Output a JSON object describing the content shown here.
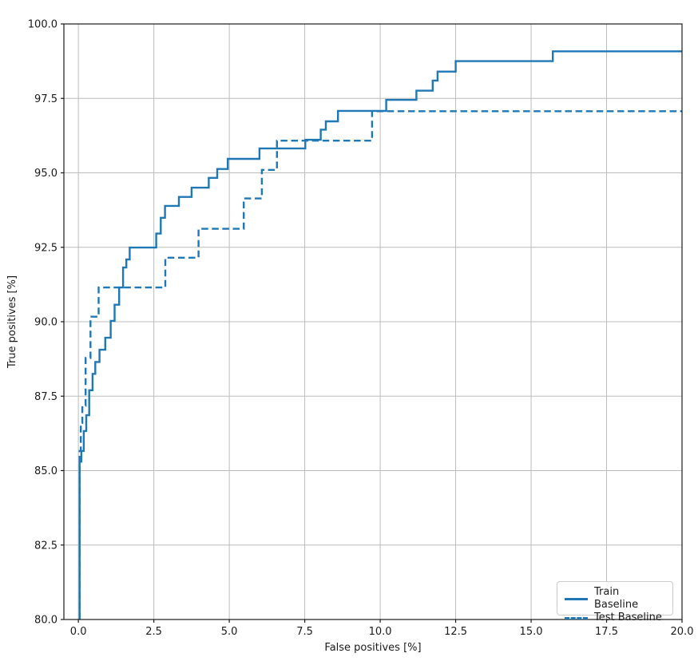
{
  "figure": {
    "background": "#ffffff",
    "accent_color": "#1f77b4",
    "grid_color": "#bcbcbc",
    "spine_color": "#1a1a1a",
    "tick_color": "#1a1a1a"
  },
  "chart_data": {
    "type": "line",
    "subtype": "step-roc-curve",
    "title": "",
    "xlabel": "False positives [%]",
    "ylabel": "True positives [%]",
    "xlim": [
      -0.48,
      20.0
    ],
    "ylim": [
      80.0,
      100.0
    ],
    "grid": true,
    "legend_position": "lower right",
    "x_ticks": {
      "values": [
        0.0,
        2.5,
        5.0,
        7.5,
        10.0,
        12.5,
        15.0,
        17.5,
        20.0
      ],
      "labels": [
        "0.0",
        "2.5",
        "5.0",
        "7.5",
        "10.0",
        "12.5",
        "15.0",
        "17.5",
        "20.0"
      ]
    },
    "y_ticks": {
      "values": [
        80.0,
        82.5,
        85.0,
        87.5,
        90.0,
        92.5,
        95.0,
        97.5,
        100.0
      ],
      "labels": [
        "80.0",
        "82.5",
        "85.0",
        "87.5",
        "90.0",
        "92.5",
        "95.0",
        "97.5",
        "100.0"
      ]
    },
    "series": [
      {
        "name": "Train Baseline",
        "line_style": "solid",
        "color": "#1f77b4",
        "points": [
          [
            0.04,
            80.0
          ],
          [
            0.04,
            85.3
          ],
          [
            0.1,
            85.3
          ],
          [
            0.1,
            85.66
          ],
          [
            0.18,
            85.66
          ],
          [
            0.18,
            86.33
          ],
          [
            0.26,
            86.33
          ],
          [
            0.26,
            86.86
          ],
          [
            0.36,
            86.86
          ],
          [
            0.36,
            87.7
          ],
          [
            0.47,
            87.7
          ],
          [
            0.47,
            88.25
          ],
          [
            0.56,
            88.25
          ],
          [
            0.56,
            88.65
          ],
          [
            0.7,
            88.65
          ],
          [
            0.7,
            89.06
          ],
          [
            0.89,
            89.06
          ],
          [
            0.89,
            89.46
          ],
          [
            1.07,
            89.46
          ],
          [
            1.07,
            90.03
          ],
          [
            1.2,
            90.03
          ],
          [
            1.2,
            90.57
          ],
          [
            1.35,
            90.57
          ],
          [
            1.35,
            91.15
          ],
          [
            1.48,
            91.15
          ],
          [
            1.48,
            91.82
          ],
          [
            1.59,
            91.82
          ],
          [
            1.59,
            92.09
          ],
          [
            1.7,
            92.09
          ],
          [
            1.7,
            92.49
          ],
          [
            2.58,
            92.49
          ],
          [
            2.58,
            92.96
          ],
          [
            2.73,
            92.96
          ],
          [
            2.73,
            93.49
          ],
          [
            2.87,
            93.49
          ],
          [
            2.87,
            93.89
          ],
          [
            3.33,
            93.89
          ],
          [
            3.33,
            94.19
          ],
          [
            3.75,
            94.19
          ],
          [
            3.75,
            94.5
          ],
          [
            4.32,
            94.5
          ],
          [
            4.32,
            94.83
          ],
          [
            4.6,
            94.83
          ],
          [
            4.6,
            95.13
          ],
          [
            4.95,
            95.13
          ],
          [
            4.95,
            95.47
          ],
          [
            6.0,
            95.47
          ],
          [
            6.0,
            95.82
          ],
          [
            7.52,
            95.82
          ],
          [
            7.52,
            96.11
          ],
          [
            8.03,
            96.11
          ],
          [
            8.03,
            96.45
          ],
          [
            8.2,
            96.45
          ],
          [
            8.2,
            96.73
          ],
          [
            8.6,
            96.73
          ],
          [
            8.6,
            97.08
          ],
          [
            10.2,
            97.08
          ],
          [
            10.2,
            97.45
          ],
          [
            11.2,
            97.45
          ],
          [
            11.2,
            97.76
          ],
          [
            11.74,
            97.76
          ],
          [
            11.74,
            98.1
          ],
          [
            11.9,
            98.1
          ],
          [
            11.9,
            98.4
          ],
          [
            12.5,
            98.4
          ],
          [
            12.5,
            98.75
          ],
          [
            15.72,
            98.75
          ],
          [
            15.72,
            99.08
          ],
          [
            20.0,
            99.08
          ]
        ]
      },
      {
        "name": "Test Baseline",
        "line_style": "dashed",
        "color": "#1f77b4",
        "points": [
          [
            0.04,
            80.0
          ],
          [
            0.04,
            85.66
          ],
          [
            0.08,
            85.66
          ],
          [
            0.08,
            86.6
          ],
          [
            0.13,
            86.6
          ],
          [
            0.13,
            87.18
          ],
          [
            0.24,
            87.18
          ],
          [
            0.24,
            88.78
          ],
          [
            0.4,
            88.78
          ],
          [
            0.4,
            90.17
          ],
          [
            0.67,
            90.17
          ],
          [
            0.67,
            91.15
          ],
          [
            2.88,
            91.15
          ],
          [
            2.88,
            92.15
          ],
          [
            3.98,
            92.15
          ],
          [
            3.98,
            93.12
          ],
          [
            5.48,
            93.12
          ],
          [
            5.48,
            94.14
          ],
          [
            6.08,
            94.14
          ],
          [
            6.08,
            95.1
          ],
          [
            6.58,
            95.1
          ],
          [
            6.58,
            96.08
          ],
          [
            9.73,
            96.08
          ],
          [
            9.73,
            97.07
          ],
          [
            20.0,
            97.07
          ]
        ]
      }
    ]
  }
}
